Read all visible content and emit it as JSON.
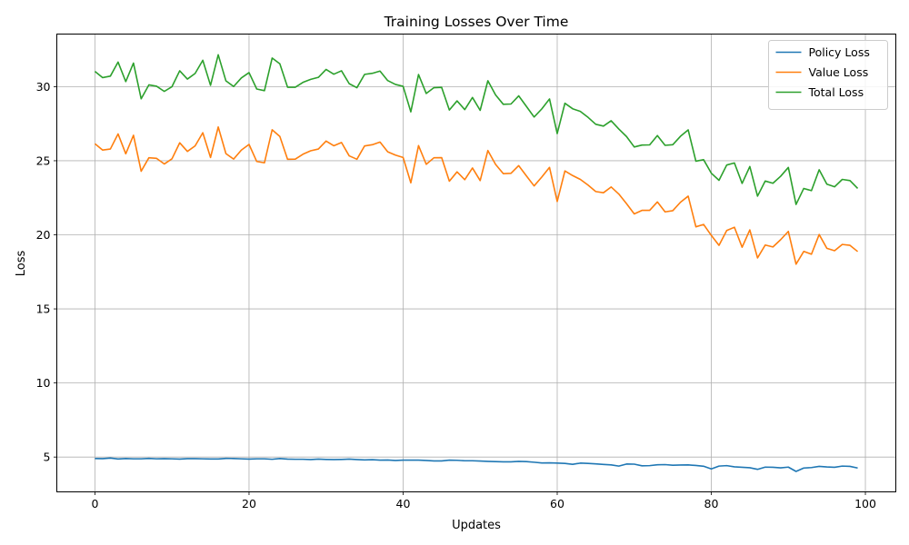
{
  "chart_data": {
    "type": "line",
    "title": "Training Losses Over Time",
    "xlabel": "Updates",
    "ylabel": "Loss",
    "xlim": [
      -4.95,
      103.95
    ],
    "ylim": [
      2.65,
      33.55
    ],
    "xticks": [
      0,
      20,
      40,
      60,
      80,
      100
    ],
    "yticks": [
      5,
      10,
      15,
      20,
      25,
      30
    ],
    "grid": true,
    "legend_position": "top-right",
    "x": [
      0,
      1,
      2,
      3,
      4,
      5,
      6,
      7,
      8,
      9,
      10,
      11,
      12,
      13,
      14,
      15,
      16,
      17,
      18,
      19,
      20,
      21,
      22,
      23,
      24,
      25,
      26,
      27,
      28,
      29,
      30,
      31,
      32,
      33,
      34,
      35,
      36,
      37,
      38,
      39,
      40,
      41,
      42,
      43,
      44,
      45,
      46,
      47,
      48,
      49,
      50,
      51,
      52,
      53,
      54,
      55,
      56,
      57,
      58,
      59,
      60,
      61,
      62,
      63,
      64,
      65,
      66,
      67,
      68,
      69,
      70,
      71,
      72,
      73,
      74,
      75,
      76,
      77,
      78,
      79,
      80,
      81,
      82,
      83,
      84,
      85,
      86,
      87,
      88,
      89,
      90,
      91,
      92,
      93,
      94,
      95,
      96,
      97,
      98,
      99
    ],
    "series": [
      {
        "name": "Policy Loss",
        "color": "#1f77b4",
        "values": [
          4.9,
          4.89,
          4.93,
          4.87,
          4.9,
          4.88,
          4.88,
          4.91,
          4.88,
          4.89,
          4.88,
          4.86,
          4.89,
          4.89,
          4.88,
          4.87,
          4.87,
          4.91,
          4.9,
          4.88,
          4.86,
          4.88,
          4.88,
          4.85,
          4.9,
          4.86,
          4.85,
          4.85,
          4.83,
          4.86,
          4.84,
          4.83,
          4.84,
          4.86,
          4.83,
          4.81,
          4.82,
          4.79,
          4.8,
          4.77,
          4.79,
          4.79,
          4.79,
          4.77,
          4.74,
          4.74,
          4.79,
          4.78,
          4.75,
          4.75,
          4.73,
          4.71,
          4.69,
          4.68,
          4.68,
          4.71,
          4.69,
          4.65,
          4.6,
          4.61,
          4.59,
          4.57,
          4.51,
          4.59,
          4.57,
          4.54,
          4.5,
          4.47,
          4.39,
          4.53,
          4.52,
          4.41,
          4.42,
          4.48,
          4.49,
          4.45,
          4.46,
          4.47,
          4.43,
          4.38,
          4.2,
          4.39,
          4.42,
          4.34,
          4.31,
          4.28,
          4.17,
          4.32,
          4.31,
          4.27,
          4.32,
          4.03,
          4.26,
          4.29,
          4.37,
          4.33,
          4.31,
          4.39,
          4.37,
          4.26
        ]
      },
      {
        "name": "Value Loss",
        "color": "#ff7f0e",
        "values": [
          26.15,
          25.72,
          25.79,
          26.81,
          25.47,
          26.72,
          24.29,
          25.2,
          25.16,
          24.78,
          25.13,
          26.21,
          25.63,
          26.0,
          26.89,
          25.22,
          27.28,
          25.48,
          25.11,
          25.72,
          26.1,
          24.95,
          24.86,
          27.09,
          26.64,
          25.1,
          25.11,
          25.44,
          25.67,
          25.79,
          26.33,
          26.01,
          26.23,
          25.33,
          25.1,
          26.0,
          26.08,
          26.26,
          25.6,
          25.38,
          25.22,
          23.51,
          26.02,
          24.76,
          25.2,
          25.21,
          23.62,
          24.25,
          23.72,
          24.51,
          23.66,
          25.69,
          24.75,
          24.13,
          24.15,
          24.67,
          23.98,
          23.3,
          23.9,
          24.55,
          22.25,
          24.31,
          24.0,
          23.74,
          23.36,
          22.92,
          22.84,
          23.23,
          22.75,
          22.1,
          21.41,
          21.65,
          21.65,
          22.22,
          21.55,
          21.63,
          22.2,
          22.61,
          20.54,
          20.7,
          19.96,
          19.29,
          20.29,
          20.51,
          19.16,
          20.33,
          18.44,
          19.31,
          19.18,
          19.67,
          20.23,
          18.02,
          18.88,
          18.69,
          20.02,
          19.09,
          18.93,
          19.35,
          19.29,
          18.87
        ]
      },
      {
        "name": "Total Loss",
        "color": "#2ca02c",
        "values": [
          31.03,
          30.61,
          30.71,
          31.66,
          30.34,
          31.59,
          29.18,
          30.12,
          30.03,
          29.68,
          30.0,
          31.07,
          30.51,
          30.89,
          31.78,
          30.09,
          32.15,
          30.39,
          30.01,
          30.59,
          30.95,
          29.84,
          29.73,
          31.93,
          31.54,
          29.96,
          29.96,
          30.29,
          30.49,
          30.63,
          31.16,
          30.84,
          31.07,
          30.2,
          29.93,
          30.83,
          30.9,
          31.05,
          30.41,
          30.15,
          30.02,
          28.3,
          30.82,
          29.54,
          29.93,
          29.95,
          28.42,
          29.04,
          28.45,
          29.27,
          28.4,
          30.4,
          29.44,
          28.81,
          28.83,
          29.38,
          28.67,
          27.95,
          28.5,
          29.17,
          26.83,
          28.88,
          28.51,
          28.33,
          27.93,
          27.46,
          27.34,
          27.7,
          27.14,
          26.63,
          25.93,
          26.06,
          26.07,
          26.7,
          26.04,
          26.08,
          26.65,
          27.08,
          24.97,
          25.07,
          24.16,
          23.68,
          24.71,
          24.85,
          23.47,
          24.61,
          22.61,
          23.63,
          23.48,
          23.95,
          24.55,
          22.05,
          23.13,
          22.98,
          24.39,
          23.42,
          23.24,
          23.74,
          23.66,
          23.13
        ]
      }
    ]
  }
}
